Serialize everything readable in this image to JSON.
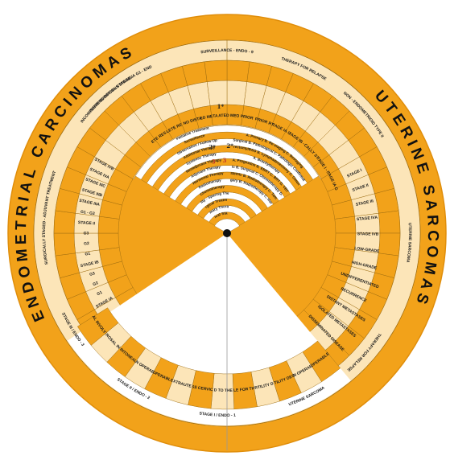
{
  "colors": {
    "orange": "#F2A21A",
    "orange_dark": "#E08E0B",
    "cream": "#FCE5B8",
    "white": "#FFFFFF",
    "line": "#9A6A10",
    "red": "#C0392B",
    "center_dot": "#111111"
  },
  "titles": {
    "endometrial": "ENDOMETRIAL CARCINOMAS",
    "uterine": "UTERINE SARCOMAS"
  },
  "arc_labels": {
    "top_a": "FERTILITY-SPARING OPTIONS STAGE IA G1 - ENDOMETRIOID",
    "top_b": "SURVEILLANCE - ENDO - 9",
    "top_c": "THERAPY FOR RELAPSE",
    "top_d": "NON - ENDOMETRIOID TYPE II",
    "left_a": "SURGICALLY STAGED - ADJUVANT TREATMENT",
    "left_b": "INCOMPLETE SURGICAL STAGING",
    "right_a": "UTERINE SARCOMA",
    "right_b": "LOW-GRADE (PRINCIPAL ELEMENTS)",
    "bottom_a": "STAGE I / ENDO - 1",
    "bottom_b": "STAGE II / ENDO - 2",
    "bottom_c": "STAGE III / ENDO - 3",
    "bottom_d": "UTERINE SARCOMA",
    "right_c": "THERAPY FOR RELAPSE"
  },
  "column_headers": [
    "COMPLETE RESPONSE",
    "INCOMPLETE RESPONSE",
    "LOCO-REGIONAL NO DISTANT METASTASES",
    "ISOLATED METASTASES",
    "DISSEMINATED METASTASES",
    "NO PRIOR RT",
    "PRIOR RT",
    "STAGE IA G1",
    "STAGE IB - II",
    "SURGICALLY STAGED",
    "STAGE I - IV",
    "STAGE IA G1"
  ],
  "rings": [
    "Surgical Staging",
    "Primary Therapy",
    "Surgical Treatment",
    "Fertility - Sparing Therapy",
    "Chemotherapy",
    "Radiotherapy",
    "Hormonal Therapy",
    "Adjuvant Therapy",
    "Neoadjuvant Therapy",
    "Systemic Therapy",
    "Additional Therapy",
    "Observation / Follow Up",
    "Surveillance",
    "Palliative Treatment"
  ],
  "ring_notes": [
    "A. Primary  B. Re-staging  C. Restaging",
    "A. Surgical  B. Pathological  C. Pathologic Confirmation",
    "A. Hysterectomy/BSO  B. Lymphadenectomy  C. Omentectomy",
    "A. Brachytherapy",
    "A. Progestins  B. EBRT  C. BRT  D. VBT",
    "A. Systemic  B. Surgical  C. Chemotherapy  D. Hormonal",
    "A. Systemic  B. Radiotherapy  C. Tamoxifen",
    "A. Surgery  B. Radiotherapy  C. Hormonal"
  ],
  "symbols": [
    "1*",
    "2*",
    "2*",
    "3",
    "3"
  ],
  "bottom_cells": [
    "OPERABLE",
    "NON OPERABLE",
    "FERTILITY DESIRE",
    "NO FERTILITY DESIRE",
    "NOT SUITABLE FOR THE SURGERY",
    "CONFINED TO THE UTERUS",
    "SUSPECTED GROSS CERVICAL INVOLVEMENT",
    "SUSPECTED EXTRAUTERINE DISEASE",
    "OPERABLE",
    "NON OPERABLE",
    "POSITIVE PERITONEAL CYTOLOGY",
    "ADNEXAL SEROSAL INVOLVEMENT",
    "VAGINAL INVOLVEMENT"
  ],
  "left_cells": [
    "STAGE IA",
    "G1",
    "G2",
    "G3",
    "STAGE IB",
    "G1",
    "G2",
    "G3",
    "STAGE II",
    "G1 - G3",
    "STAGE IIIA",
    "STAGE IIIB",
    "STAGE IIIC",
    "STAGE IVA",
    "STAGE IVB"
  ],
  "right_cells": [
    "STAGE I",
    "STAGE II",
    "STAGE III",
    "STAGE IVA",
    "STAGE IVB",
    "LOW-GRADE",
    "HIGH-GRADE",
    "UNDIFFERENTIATED",
    "RECURRENCE",
    "DISTANT METASTASES",
    "ISOLATED METASTASES",
    "DISSEMINATED DISEASE"
  ]
}
